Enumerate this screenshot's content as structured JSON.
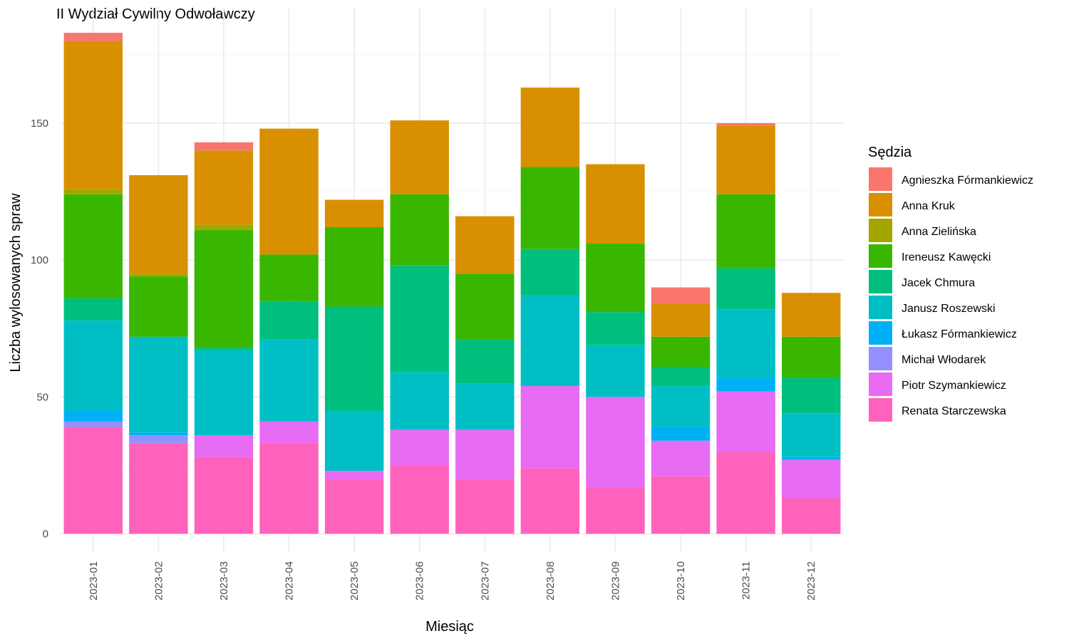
{
  "chart_data": {
    "type": "bar",
    "stacked": true,
    "title": "II Wydział Cywilny Odwoławczy",
    "xlabel": "Miesiąc",
    "ylabel": "Liczba wylosowanych spraw",
    "ylim": [
      0,
      190
    ],
    "yticks": [
      0,
      50,
      100,
      150
    ],
    "grid": true,
    "legend_title": "Sędzia",
    "legend_position": "right",
    "categories": [
      "2023-01",
      "2023-02",
      "2023-03",
      "2023-04",
      "2023-05",
      "2023-06",
      "2023-07",
      "2023-08",
      "2023-09",
      "2023-10",
      "2023-11",
      "2023-12"
    ],
    "series": [
      {
        "name": "Agnieszka Fórmankiewicz",
        "color": "#F8766D",
        "values": [
          3,
          0,
          3,
          0,
          0,
          0,
          0,
          0,
          0,
          6,
          1,
          0
        ]
      },
      {
        "name": "Anna Kruk",
        "color": "#D89000",
        "values": [
          54,
          36,
          27,
          46,
          10,
          27,
          21,
          29,
          29,
          12,
          25,
          16
        ]
      },
      {
        "name": "Anna Zielińska",
        "color": "#A3A500",
        "values": [
          2,
          1,
          2,
          0,
          0,
          0,
          0,
          0,
          0,
          0,
          0,
          0
        ]
      },
      {
        "name": "Ireneusz Kawęcki",
        "color": "#39B600",
        "values": [
          38,
          22,
          43,
          17,
          29,
          26,
          24,
          30,
          25,
          11,
          27,
          15
        ]
      },
      {
        "name": "Jacek Chmura",
        "color": "#00BF7D",
        "values": [
          8,
          0,
          1,
          14,
          38,
          39,
          16,
          17,
          12,
          7,
          15,
          13
        ]
      },
      {
        "name": "Janusz Roszewski",
        "color": "#00BFC4",
        "values": [
          33,
          35,
          31,
          30,
          22,
          21,
          17,
          33,
          19,
          15,
          25,
          16
        ]
      },
      {
        "name": "Łukasz Fórmankiewicz",
        "color": "#00B0F6",
        "values": [
          4,
          1,
          0,
          0,
          0,
          0,
          0,
          0,
          0,
          5,
          5,
          1
        ]
      },
      {
        "name": "Michał Włodarek",
        "color": "#9590FF",
        "values": [
          2,
          3,
          0,
          0,
          0,
          0,
          0,
          0,
          0,
          0,
          0,
          0
        ]
      },
      {
        "name": "Piotr Szymankiewicz",
        "color": "#E76BF3",
        "values": [
          0,
          0,
          8,
          8,
          3,
          13,
          18,
          30,
          33,
          13,
          22,
          14
        ]
      },
      {
        "name": "Renata Starczewska",
        "color": "#FF62BC",
        "values": [
          39,
          33,
          28,
          33,
          20,
          25,
          20,
          24,
          17,
          21,
          30,
          13
        ]
      }
    ]
  }
}
